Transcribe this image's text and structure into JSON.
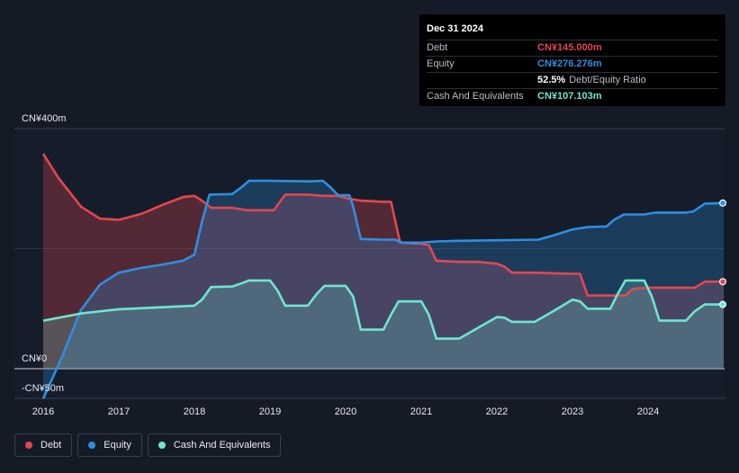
{
  "tooltip": {
    "date": "Dec 31 2024",
    "debt_label": "Debt",
    "debt_value": "CN¥145.000m",
    "equity_label": "Equity",
    "equity_value": "CN¥276.276m",
    "ratio_value": "52.5%",
    "ratio_label": "Debt/Equity Ratio",
    "cash_label": "Cash And Equivalents",
    "cash_value": "CN¥107.103m"
  },
  "legend": [
    {
      "label": "Debt",
      "color": "#e2474f"
    },
    {
      "label": "Equity",
      "color": "#2f8ee0"
    },
    {
      "label": "Cash And Equivalents",
      "color": "#6ee6cf"
    }
  ],
  "chart_data": {
    "type": "area",
    "title": "",
    "xlabel": "",
    "ylabel": "",
    "y_tick_labels": [
      "CN¥400m",
      "CN¥0",
      "-CN¥50m"
    ],
    "x_tick_labels": [
      "2016",
      "2017",
      "2018",
      "2019",
      "2020",
      "2021",
      "2022",
      "2023",
      "2024"
    ],
    "x_ticks": [
      2016,
      2017,
      2018,
      2019,
      2020,
      2021,
      2022,
      2023,
      2024
    ],
    "xlim": [
      2015.63,
      2025.0
    ],
    "ylim": [
      -50,
      400
    ],
    "grid_values": [
      200
    ],
    "colors": {
      "debt": "#e2474f",
      "equity": "#2f8ee0",
      "cash": "#6ee6cf"
    },
    "series": [
      {
        "name": "Debt",
        "key": "debt",
        "points": [
          [
            2016.0,
            358
          ],
          [
            2016.2,
            318
          ],
          [
            2016.5,
            270
          ],
          [
            2016.75,
            250
          ],
          [
            2017.0,
            248
          ],
          [
            2017.3,
            258
          ],
          [
            2017.6,
            274
          ],
          [
            2017.85,
            286
          ],
          [
            2018.0,
            288
          ],
          [
            2018.1,
            280
          ],
          [
            2018.22,
            268
          ],
          [
            2018.5,
            268
          ],
          [
            2018.7,
            264
          ],
          [
            2018.9,
            264
          ],
          [
            2019.05,
            264
          ],
          [
            2019.2,
            290
          ],
          [
            2019.5,
            290
          ],
          [
            2019.7,
            288
          ],
          [
            2019.9,
            288
          ],
          [
            2020.05,
            283
          ],
          [
            2020.2,
            280
          ],
          [
            2020.5,
            278
          ],
          [
            2020.6,
            278
          ],
          [
            2020.72,
            210
          ],
          [
            2021.0,
            208
          ],
          [
            2021.1,
            206
          ],
          [
            2021.2,
            180
          ],
          [
            2021.5,
            178
          ],
          [
            2021.75,
            178
          ],
          [
            2022.0,
            175
          ],
          [
            2022.1,
            170
          ],
          [
            2022.2,
            160
          ],
          [
            2022.5,
            160
          ],
          [
            2022.75,
            159
          ],
          [
            2023.0,
            158
          ],
          [
            2023.1,
            158
          ],
          [
            2023.2,
            122
          ],
          [
            2023.5,
            122
          ],
          [
            2023.7,
            122
          ],
          [
            2023.8,
            133
          ],
          [
            2024.0,
            135
          ],
          [
            2024.5,
            135
          ],
          [
            2024.62,
            135
          ],
          [
            2024.75,
            145
          ],
          [
            2025.0,
            145
          ]
        ]
      },
      {
        "name": "Equity",
        "key": "equity",
        "points": [
          [
            2016.0,
            -50
          ],
          [
            2016.25,
            20
          ],
          [
            2016.5,
            98
          ],
          [
            2016.75,
            140
          ],
          [
            2017.0,
            160
          ],
          [
            2017.3,
            168
          ],
          [
            2017.6,
            174
          ],
          [
            2017.85,
            180
          ],
          [
            2018.0,
            190
          ],
          [
            2018.1,
            245
          ],
          [
            2018.2,
            290
          ],
          [
            2018.5,
            291
          ],
          [
            2018.62,
            302
          ],
          [
            2018.72,
            313
          ],
          [
            2019.0,
            313
          ],
          [
            2019.5,
            312
          ],
          [
            2019.7,
            313
          ],
          [
            2019.8,
            302
          ],
          [
            2019.9,
            289
          ],
          [
            2020.05,
            289
          ],
          [
            2020.1,
            270
          ],
          [
            2020.2,
            216
          ],
          [
            2020.5,
            215
          ],
          [
            2020.65,
            215
          ],
          [
            2020.75,
            210
          ],
          [
            2021.0,
            210
          ],
          [
            2021.2,
            212
          ],
          [
            2021.5,
            213
          ],
          [
            2022.0,
            214
          ],
          [
            2022.55,
            215
          ],
          [
            2022.75,
            222
          ],
          [
            2023.0,
            232
          ],
          [
            2023.2,
            236
          ],
          [
            2023.45,
            237
          ],
          [
            2023.55,
            248
          ],
          [
            2023.68,
            257
          ],
          [
            2023.95,
            257
          ],
          [
            2024.1,
            260
          ],
          [
            2024.5,
            260
          ],
          [
            2024.6,
            262
          ],
          [
            2024.75,
            275
          ],
          [
            2025.0,
            276
          ]
        ]
      },
      {
        "name": "Cash And Equivalents",
        "key": "cash",
        "points": [
          [
            2016.0,
            80
          ],
          [
            2016.5,
            92
          ],
          [
            2017.0,
            99
          ],
          [
            2017.5,
            102
          ],
          [
            2018.0,
            105
          ],
          [
            2018.1,
            115
          ],
          [
            2018.22,
            136
          ],
          [
            2018.5,
            137
          ],
          [
            2018.62,
            142
          ],
          [
            2018.72,
            147
          ],
          [
            2019.0,
            147
          ],
          [
            2019.1,
            130
          ],
          [
            2019.2,
            105
          ],
          [
            2019.5,
            105
          ],
          [
            2019.62,
            125
          ],
          [
            2019.72,
            138
          ],
          [
            2020.0,
            138
          ],
          [
            2020.1,
            120
          ],
          [
            2020.2,
            65
          ],
          [
            2020.5,
            65
          ],
          [
            2020.6,
            90
          ],
          [
            2020.7,
            112
          ],
          [
            2021.0,
            112
          ],
          [
            2021.1,
            90
          ],
          [
            2021.2,
            50
          ],
          [
            2021.5,
            50
          ],
          [
            2021.75,
            68
          ],
          [
            2022.0,
            86
          ],
          [
            2022.1,
            85
          ],
          [
            2022.2,
            78
          ],
          [
            2022.5,
            78
          ],
          [
            2022.75,
            96
          ],
          [
            2023.0,
            115
          ],
          [
            2023.1,
            112
          ],
          [
            2023.2,
            100
          ],
          [
            2023.5,
            100
          ],
          [
            2023.6,
            125
          ],
          [
            2023.7,
            147
          ],
          [
            2023.95,
            147
          ],
          [
            2024.05,
            120
          ],
          [
            2024.15,
            80
          ],
          [
            2024.5,
            80
          ],
          [
            2024.62,
            96
          ],
          [
            2024.75,
            107
          ],
          [
            2025.0,
            107
          ]
        ]
      }
    ]
  }
}
